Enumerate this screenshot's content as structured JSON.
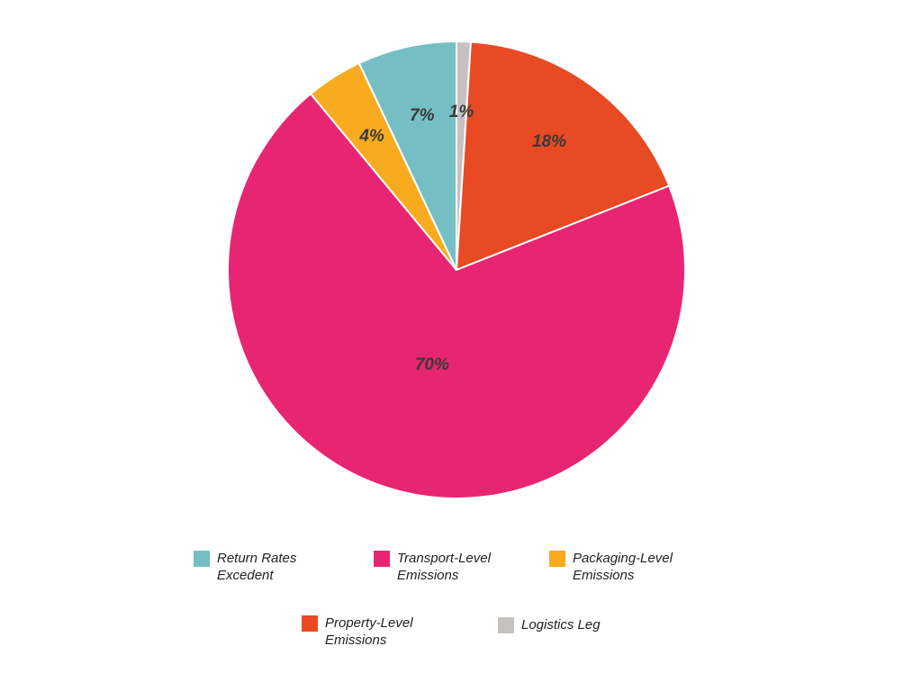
{
  "chart_data": {
    "type": "pie",
    "categories": [
      "Logistics Leg",
      "Property-Level Emissions",
      "Transport-Level Emissions",
      "Packaging-Level Emissions",
      "Return Rates Excedent"
    ],
    "values": [
      1,
      18,
      70,
      4,
      7
    ],
    "value_labels": [
      "1%",
      "18%",
      "70%",
      "4%",
      "7%"
    ],
    "colors": [
      "#c9c1c1",
      "#e84a23",
      "#e82572",
      "#f8ab1e",
      "#75bfc4"
    ]
  }
}
